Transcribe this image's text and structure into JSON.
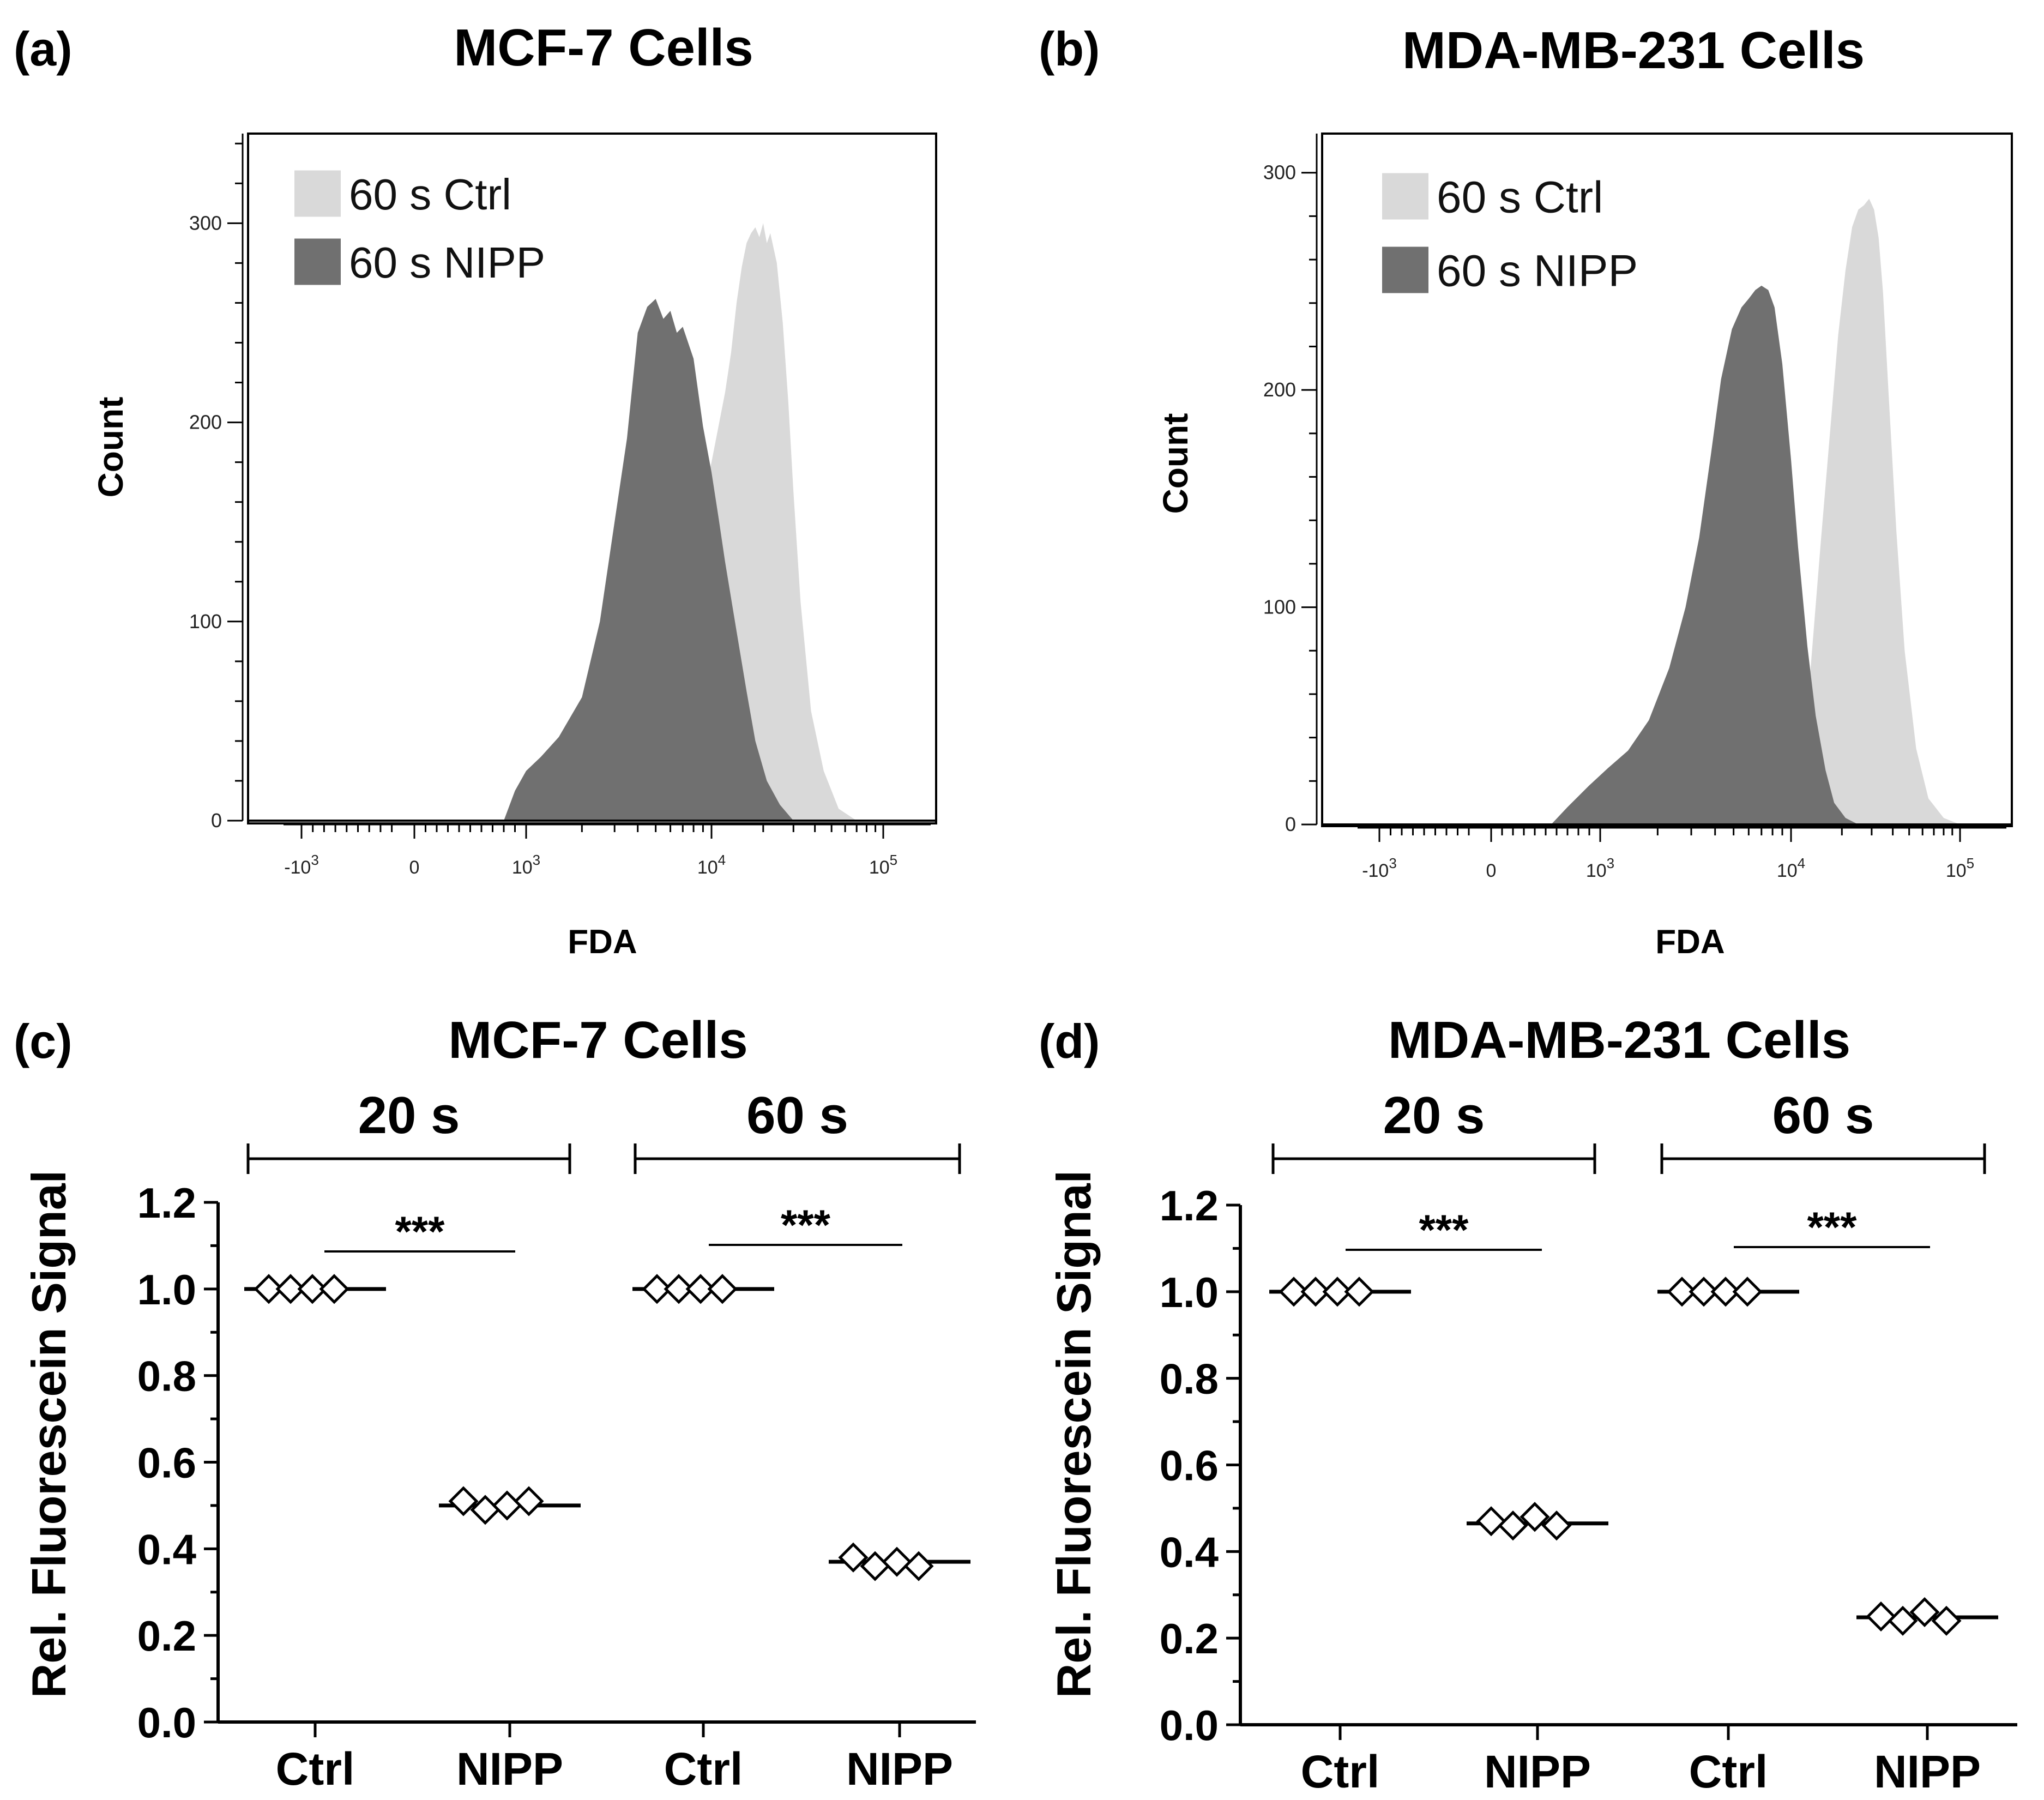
{
  "panels": [
    {
      "letter": "(a)",
      "title": "MCF-7 Cells",
      "legend": [
        {
          "label": "60 s Ctrl",
          "color": "#d9d9d9"
        },
        {
          "label": "60 s NIPP",
          "color": "#707070"
        }
      ]
    },
    {
      "letter": "(b)",
      "title": "MDA-MB-231 Cells",
      "legend": [
        {
          "label": "60 s Ctrl",
          "color": "#d9d9d9"
        },
        {
          "label": "60 s NIPP",
          "color": "#707070"
        }
      ]
    },
    {
      "letter": "(c)",
      "title": "MCF-7 Cells",
      "groups": [
        "20 s",
        "60 s"
      ],
      "significance": "***"
    },
    {
      "letter": "(d)",
      "title": "MDA-MB-231 Cells",
      "groups": [
        "20 s",
        "60 s"
      ],
      "significance": "***"
    }
  ],
  "chart_data": [
    {
      "type": "area",
      "title": "MCF-7 Cells",
      "xlabel": "FDA",
      "ylabel": "Count",
      "xscale": "biexponential",
      "xtick_labels": [
        "-10^3",
        "0",
        "10^3",
        "10^4",
        "10^5"
      ],
      "yticks": [
        0,
        100,
        200,
        300
      ],
      "ylim": [
        0,
        345
      ],
      "legend_position": "top-left",
      "series": [
        {
          "name": "60 s Ctrl",
          "color": "#d9d9d9",
          "x": [
            2500,
            5000,
            8000,
            10000,
            12000,
            13000,
            14000,
            15000,
            16000,
            17000,
            18000,
            19000,
            20000,
            21000,
            22000,
            24000,
            26000,
            28000,
            30000,
            33000,
            38000,
            45000,
            55000,
            70000
          ],
          "y": [
            0,
            50,
            140,
            180,
            215,
            235,
            260,
            278,
            290,
            295,
            298,
            293,
            300,
            290,
            295,
            280,
            250,
            210,
            165,
            110,
            55,
            25,
            6,
            0
          ]
        },
        {
          "name": "60 s NIPP",
          "color": "#707070",
          "x": [
            800,
            900,
            1000,
            1200,
            1500,
            2000,
            2500,
            3000,
            3500,
            4000,
            4500,
            5000,
            5500,
            6000,
            6500,
            7000,
            8000,
            9000,
            10000,
            11000,
            12000,
            14000,
            16000,
            18000,
            21000,
            25000,
            30000
          ],
          "y": [
            0,
            15,
            25,
            32,
            42,
            62,
            100,
            150,
            192,
            245,
            258,
            262,
            252,
            256,
            245,
            248,
            232,
            198,
            175,
            152,
            130,
            95,
            65,
            40,
            20,
            8,
            0
          ]
        }
      ]
    },
    {
      "type": "area",
      "title": "MDA-MB-231 Cells",
      "xlabel": "FDA",
      "ylabel": "Count",
      "xscale": "biexponential",
      "xtick_labels": [
        "-10^3",
        "0",
        "10^3",
        "10^4",
        "10^5"
      ],
      "yticks": [
        0,
        100,
        200,
        300
      ],
      "ylim": [
        0,
        318
      ],
      "legend_position": "top-left",
      "series": [
        {
          "name": "60 s Ctrl",
          "color": "#d9d9d9",
          "x": [
            9000,
            11000,
            13000,
            15000,
            17000,
            19000,
            21000,
            23000,
            25000,
            27000,
            29000,
            31000,
            33000,
            35000,
            38000,
            42000,
            47000,
            55000,
            65000,
            80000,
            100000
          ],
          "y": [
            0,
            25,
            70,
            130,
            180,
            225,
            255,
            275,
            283,
            285,
            288,
            283,
            270,
            245,
            195,
            135,
            80,
            35,
            12,
            3,
            0
          ]
        },
        {
          "name": "60 s NIPP",
          "color": "#707070",
          "x": [
            550,
            700,
            900,
            1100,
            1400,
            1800,
            2300,
            2800,
            3300,
            3800,
            4300,
            4900,
            5500,
            6000,
            6500,
            7000,
            7600,
            8200,
            9000,
            10000,
            11000,
            12500,
            14000,
            16000,
            18000,
            21000,
            25000
          ],
          "y": [
            0,
            8,
            18,
            26,
            34,
            48,
            72,
            100,
            132,
            170,
            205,
            228,
            238,
            242,
            246,
            248,
            246,
            238,
            212,
            168,
            128,
            82,
            50,
            25,
            10,
            3,
            0
          ]
        }
      ]
    },
    {
      "type": "scatter",
      "title": "MCF-7 Cells",
      "ylabel": "Rel. Fluorescein Signal",
      "categories": [
        "Ctrl",
        "NIPP",
        "Ctrl",
        "NIPP"
      ],
      "groups": [
        {
          "label": "20 s",
          "categories": [
            0,
            1
          ]
        },
        {
          "label": "60 s",
          "categories": [
            2,
            3
          ]
        }
      ],
      "ylim": [
        0,
        1.2
      ],
      "yticks": [
        0.0,
        0.2,
        0.4,
        0.6,
        0.8,
        1.0,
        1.2
      ],
      "marker": "diamond",
      "series": [
        {
          "name": "20 s Ctrl",
          "values": [
            1.0,
            1.0,
            1.0,
            1.0
          ],
          "mean": 1.0
        },
        {
          "name": "20 s NIPP",
          "values": [
            0.51,
            0.49,
            0.5,
            0.51
          ],
          "mean": 0.5
        },
        {
          "name": "60 s Ctrl",
          "values": [
            1.0,
            1.0,
            1.0,
            1.0
          ],
          "mean": 1.0
        },
        {
          "name": "60 s NIPP",
          "values": [
            0.38,
            0.36,
            0.37,
            0.36
          ],
          "mean": 0.37
        }
      ],
      "annotations": [
        {
          "text": "***",
          "between": [
            0,
            1
          ]
        },
        {
          "text": "***",
          "between": [
            2,
            3
          ]
        }
      ]
    },
    {
      "type": "scatter",
      "title": "MDA-MB-231 Cells",
      "ylabel": "Rel. Fluorescein Signal",
      "categories": [
        "Ctrl",
        "NIPP",
        "Ctrl",
        "NIPP"
      ],
      "groups": [
        {
          "label": "20 s",
          "categories": [
            0,
            1
          ]
        },
        {
          "label": "60 s",
          "categories": [
            2,
            3
          ]
        }
      ],
      "ylim": [
        0,
        1.2
      ],
      "yticks": [
        0.0,
        0.2,
        0.4,
        0.6,
        0.8,
        1.0,
        1.2
      ],
      "marker": "diamond",
      "series": [
        {
          "name": "20 s Ctrl",
          "values": [
            1.0,
            1.0,
            1.0,
            1.0
          ],
          "mean": 1.0
        },
        {
          "name": "20 s NIPP",
          "values": [
            0.47,
            0.46,
            0.48,
            0.46
          ],
          "mean": 0.465
        },
        {
          "name": "60 s Ctrl",
          "values": [
            1.0,
            1.0,
            1.0,
            1.0
          ],
          "mean": 1.0
        },
        {
          "name": "60 s NIPP",
          "values": [
            0.25,
            0.24,
            0.26,
            0.24
          ],
          "mean": 0.248
        }
      ],
      "annotations": [
        {
          "text": "***",
          "between": [
            0,
            1
          ]
        },
        {
          "text": "***",
          "between": [
            2,
            3
          ]
        }
      ]
    }
  ]
}
